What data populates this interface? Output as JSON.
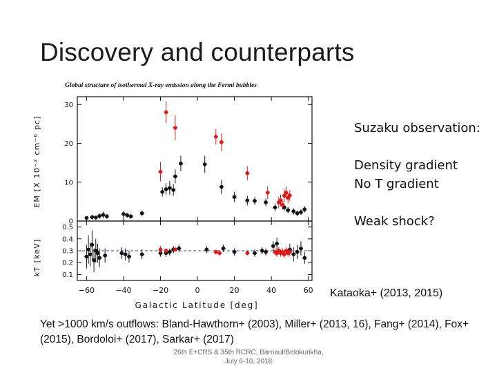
{
  "slide": {
    "title": "Discovery and counterparts",
    "notes": {
      "heading": "Suzaku observation:",
      "line1": "Density gradient",
      "line2": "No T gradient",
      "line3": "Weak shock?"
    },
    "citation": "Kataoka+ (2013, 2015)",
    "outflows": "Yet >1000 km/s outflows: Bland-Hawthorn+ (2003), Miller+ (2013, 16), Fang+ (2014), Fox+ (2015), Bordoloi+ (2017), Sarkar+ (2017)",
    "footer_line1": "26th E+CRS & 35th RCRC, Barnaul/Belokurikha,",
    "footer_line2": "July 6-10, 2018"
  },
  "chart_data": {
    "type": "scatter",
    "title": "Global structure of isothermal X-ray emission along the Fermi bubbles",
    "xlabel": "Galactic Latitude [deg]",
    "xlim": [
      -65,
      62
    ],
    "xticks": [
      -60,
      -40,
      -20,
      0,
      20,
      40,
      60
    ],
    "colors": {
      "black": "#111111",
      "red": "#e01818",
      "dashed": "#3a3aa8"
    },
    "top_panel": {
      "ylabel": "EM [X 10⁻² cm⁻⁶ pc]",
      "ylim": [
        0,
        32
      ],
      "yticks": [
        0,
        10,
        20,
        30
      ],
      "series": [
        {
          "color": "black",
          "points": [
            {
              "x": -60,
              "y": 0.8,
              "e": 0.5
            },
            {
              "x": -57,
              "y": 1.0,
              "e": 0.6
            },
            {
              "x": -55,
              "y": 0.9,
              "e": 0.5
            },
            {
              "x": -53,
              "y": 1.3,
              "e": 0.7
            },
            {
              "x": -51,
              "y": 1.6,
              "e": 0.8
            },
            {
              "x": -49,
              "y": 1.2,
              "e": 0.6
            },
            {
              "x": -40,
              "y": 1.8,
              "e": 0.8
            },
            {
              "x": -38,
              "y": 1.5,
              "e": 0.6
            },
            {
              "x": -36,
              "y": 1.2,
              "e": 0.6
            },
            {
              "x": -30,
              "y": 2.0,
              "e": 0.7
            },
            {
              "x": -19,
              "y": 7.5,
              "e": 1.2
            },
            {
              "x": -17,
              "y": 8.2,
              "e": 1.5
            },
            {
              "x": -15,
              "y": 8.5,
              "e": 1.8
            },
            {
              "x": -13,
              "y": 8.0,
              "e": 1.5
            },
            {
              "x": -12,
              "y": 11.5,
              "e": 1.8
            },
            {
              "x": -9,
              "y": 14.8,
              "e": 2.0
            },
            {
              "x": 4,
              "y": 14.6,
              "e": 2.2
            },
            {
              "x": 13,
              "y": 8.8,
              "e": 1.8
            },
            {
              "x": 20,
              "y": 6.2,
              "e": 1.3
            },
            {
              "x": 27,
              "y": 5.3,
              "e": 1.2
            },
            {
              "x": 31,
              "y": 5.2,
              "e": 1.0
            },
            {
              "x": 37,
              "y": 4.8,
              "e": 1.0
            },
            {
              "x": 42,
              "y": 3.5,
              "e": 1.0
            },
            {
              "x": 47,
              "y": 3.5,
              "e": 0.8
            },
            {
              "x": 49,
              "y": 2.8,
              "e": 0.8
            },
            {
              "x": 52,
              "y": 2.5,
              "e": 0.8
            },
            {
              "x": 54,
              "y": 2.0,
              "e": 0.7
            },
            {
              "x": 56,
              "y": 2.3,
              "e": 0.7
            },
            {
              "x": 58,
              "y": 3.0,
              "e": 0.8
            }
          ]
        },
        {
          "color": "red",
          "points": [
            {
              "x": -20,
              "y": 12.7,
              "e": 2.5
            },
            {
              "x": -17,
              "y": 28.0,
              "e": 2.8
            },
            {
              "x": -12,
              "y": 24.0,
              "e": 3.2
            },
            {
              "x": 10,
              "y": 21.7,
              "e": 2.0
            },
            {
              "x": 13,
              "y": 20.3,
              "e": 2.3
            },
            {
              "x": 27,
              "y": 12.3,
              "e": 1.8
            },
            {
              "x": 38,
              "y": 7.3,
              "e": 1.6
            },
            {
              "x": 44,
              "y": 4.8,
              "e": 1.5
            },
            {
              "x": 45,
              "y": 5.3,
              "e": 1.5
            },
            {
              "x": 46,
              "y": 4.2,
              "e": 1.3
            },
            {
              "x": 47,
              "y": 6.5,
              "e": 1.8
            },
            {
              "x": 48,
              "y": 7.3,
              "e": 1.6
            },
            {
              "x": 49,
              "y": 6.0,
              "e": 1.4
            },
            {
              "x": 50,
              "y": 6.6,
              "e": 1.4
            }
          ]
        }
      ]
    },
    "bottom_panel": {
      "ylabel": "kT [keV]",
      "ylim": [
        0.05,
        0.55
      ],
      "yticks": [
        0.1,
        0.2,
        0.3,
        0.4,
        0.5
      ],
      "dashed_line": 0.3,
      "series": [
        {
          "color": "black",
          "points": [
            {
              "x": -60,
              "y": 0.25,
              "e": 0.1
            },
            {
              "x": -59,
              "y": 0.31,
              "e": 0.12
            },
            {
              "x": -58,
              "y": 0.27,
              "e": 0.1
            },
            {
              "x": -57,
              "y": 0.35,
              "e": 0.12
            },
            {
              "x": -56,
              "y": 0.22,
              "e": 0.1
            },
            {
              "x": -55,
              "y": 0.3,
              "e": 0.1
            },
            {
              "x": -54,
              "y": 0.28,
              "e": 0.08
            },
            {
              "x": -53,
              "y": 0.24,
              "e": 0.08
            },
            {
              "x": -50,
              "y": 0.26,
              "e": 0.06
            },
            {
              "x": -41,
              "y": 0.28,
              "e": 0.05
            },
            {
              "x": -39,
              "y": 0.27,
              "e": 0.05
            },
            {
              "x": -37,
              "y": 0.25,
              "e": 0.05
            },
            {
              "x": -30,
              "y": 0.27,
              "e": 0.04
            },
            {
              "x": -20,
              "y": 0.28,
              "e": 0.03
            },
            {
              "x": -17,
              "y": 0.28,
              "e": 0.03
            },
            {
              "x": -15,
              "y": 0.29,
              "e": 0.03
            },
            {
              "x": -13,
              "y": 0.31,
              "e": 0.03
            },
            {
              "x": -10,
              "y": 0.32,
              "e": 0.03
            },
            {
              "x": 5,
              "y": 0.31,
              "e": 0.03
            },
            {
              "x": 14,
              "y": 0.32,
              "e": 0.03
            },
            {
              "x": 20,
              "y": 0.29,
              "e": 0.03
            },
            {
              "x": 31,
              "y": 0.28,
              "e": 0.03
            },
            {
              "x": 35,
              "y": 0.3,
              "e": 0.03
            },
            {
              "x": 37,
              "y": 0.29,
              "e": 0.03
            },
            {
              "x": 41,
              "y": 0.34,
              "e": 0.04
            },
            {
              "x": 43,
              "y": 0.36,
              "e": 0.05
            },
            {
              "x": 50,
              "y": 0.31,
              "e": 0.05
            },
            {
              "x": 52,
              "y": 0.27,
              "e": 0.06
            },
            {
              "x": 54,
              "y": 0.29,
              "e": 0.06
            },
            {
              "x": 56,
              "y": 0.32,
              "e": 0.06
            },
            {
              "x": 58,
              "y": 0.24,
              "e": 0.05
            }
          ]
        },
        {
          "color": "red",
          "points": [
            {
              "x": -20,
              "y": 0.31,
              "e": 0.03
            },
            {
              "x": -17,
              "y": 0.3,
              "e": 0.02
            },
            {
              "x": -12,
              "y": 0.31,
              "e": 0.02
            },
            {
              "x": 10,
              "y": 0.29,
              "e": 0.02
            },
            {
              "x": 12,
              "y": 0.28,
              "e": 0.02
            },
            {
              "x": 27,
              "y": 0.28,
              "e": 0.02
            },
            {
              "x": 42,
              "y": 0.29,
              "e": 0.03
            },
            {
              "x": 43,
              "y": 0.28,
              "e": 0.03
            },
            {
              "x": 44,
              "y": 0.3,
              "e": 0.03
            },
            {
              "x": 45,
              "y": 0.28,
              "e": 0.03
            },
            {
              "x": 46,
              "y": 0.29,
              "e": 0.03
            },
            {
              "x": 47,
              "y": 0.27,
              "e": 0.03
            },
            {
              "x": 48,
              "y": 0.3,
              "e": 0.03
            },
            {
              "x": 49,
              "y": 0.28,
              "e": 0.03
            },
            {
              "x": 50,
              "y": 0.29,
              "e": 0.03
            }
          ]
        }
      ]
    }
  }
}
